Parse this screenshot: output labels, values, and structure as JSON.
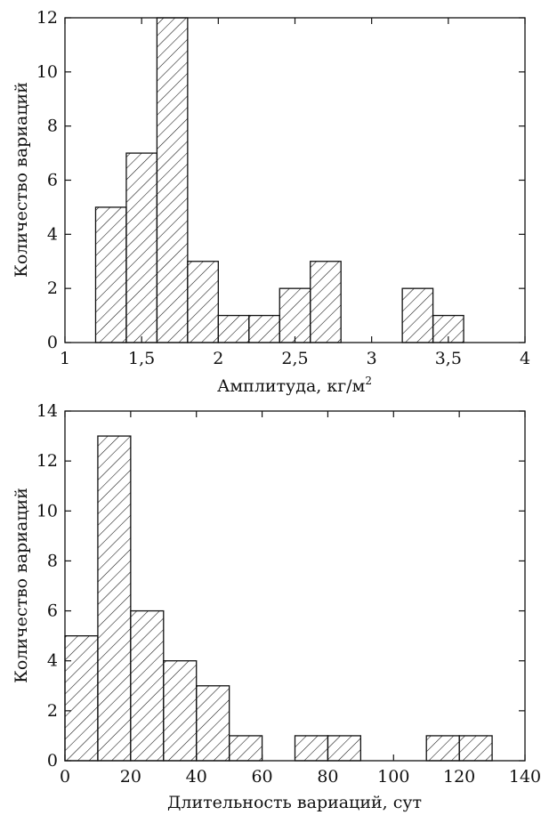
{
  "chart_data": [
    {
      "type": "bar",
      "xlabel": "Амплитуда, кг/м",
      "xlabel_sup": "2",
      "ylabel": "Количество вариаций",
      "xlim": [
        1,
        4
      ],
      "ylim": [
        0,
        12
      ],
      "xticks": [
        "1",
        "1,5",
        "2",
        "2,5",
        "3",
        "3,5",
        "4"
      ],
      "xtick_values": [
        1,
        1.5,
        2,
        2.5,
        3,
        3.5,
        4
      ],
      "yticks": [
        0,
        2,
        4,
        6,
        8,
        10,
        12
      ],
      "bin_edges": [
        1.2,
        1.4,
        1.6,
        1.8,
        2.0,
        2.2,
        2.4,
        2.6,
        2.8,
        3.0,
        3.2,
        3.4,
        3.6
      ],
      "values": [
        5,
        7,
        12,
        3,
        1,
        1,
        2,
        3,
        0,
        0,
        2,
        1
      ],
      "fill": "hatch-diagonal"
    },
    {
      "type": "bar",
      "xlabel": "Длительность вариаций, сут",
      "ylabel": "Количество вариаций",
      "xlim": [
        0,
        140
      ],
      "ylim": [
        0,
        14
      ],
      "xticks": [
        "0",
        "20",
        "40",
        "60",
        "80",
        "100",
        "120",
        "140"
      ],
      "xtick_values": [
        0,
        20,
        40,
        60,
        80,
        100,
        120,
        140
      ],
      "yticks": [
        0,
        2,
        4,
        6,
        8,
        10,
        12,
        14
      ],
      "bin_edges": [
        0,
        10,
        20,
        30,
        40,
        50,
        60,
        70,
        80,
        90,
        100,
        110,
        120,
        130
      ],
      "values": [
        5,
        13,
        6,
        4,
        3,
        1,
        0,
        1,
        1,
        0,
        0,
        1,
        1
      ],
      "fill": "hatch-diagonal"
    }
  ]
}
